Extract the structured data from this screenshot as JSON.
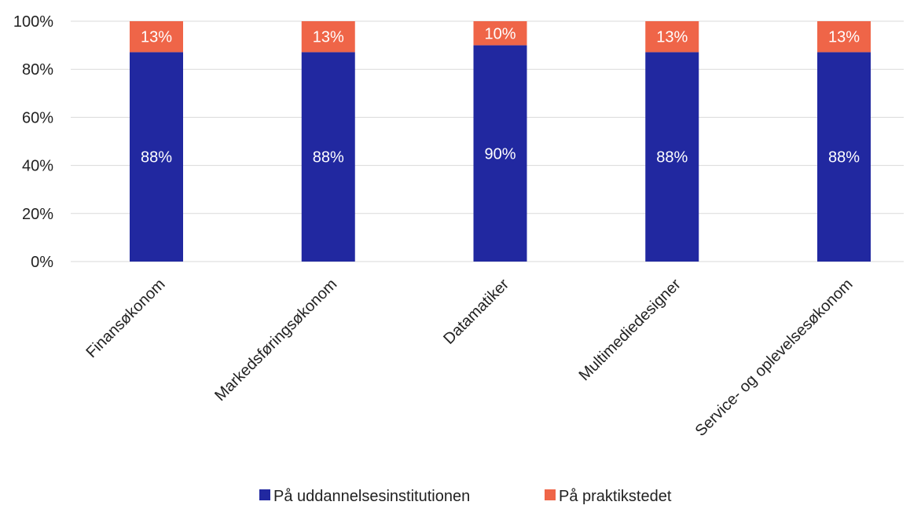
{
  "chart_data": {
    "type": "bar",
    "stacked": true,
    "categories": [
      "Finansøkonom",
      "Markedsføringsøkonom",
      "Datamatiker",
      "Multimediedesigner",
      "Service- og oplevelsesøkonom"
    ],
    "series": [
      {
        "name": "På uddannelsesinstitutionen",
        "values": [
          88,
          88,
          90,
          88,
          88
        ],
        "labels": [
          "88%",
          "88%",
          "90%",
          "88%",
          "88%"
        ],
        "color": "#2128A0"
      },
      {
        "name": "På praktikstedet",
        "values": [
          13,
          13,
          10,
          13,
          13
        ],
        "labels": [
          "13%",
          "13%",
          "10%",
          "13%",
          "13%"
        ],
        "color": "#EF6548"
      }
    ],
    "yticks": [
      "0%",
      "20%",
      "40%",
      "60%",
      "80%",
      "100%"
    ],
    "ylim": [
      0,
      100
    ],
    "grid": true,
    "legend_position": "bottom-center",
    "category_label_rotation": -45
  },
  "colors": {
    "grid": "#D9D9D9",
    "text": "#222222"
  }
}
